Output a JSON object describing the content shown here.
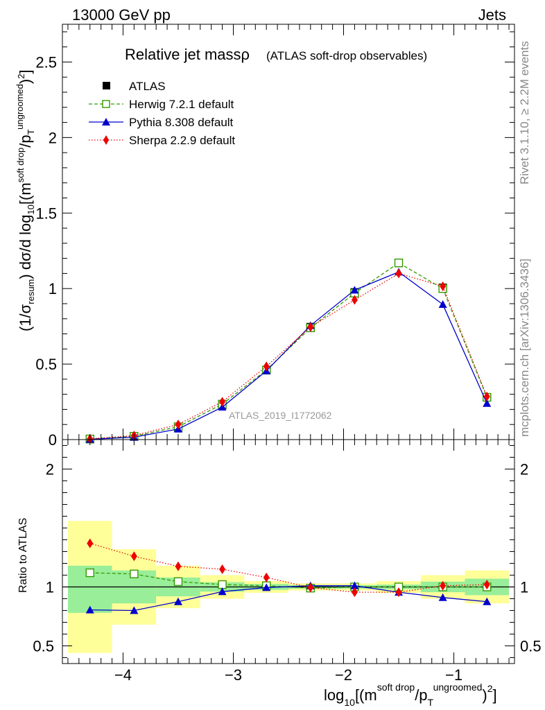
{
  "header": {
    "energy": "13000 GeV pp",
    "category": "Jets",
    "side_version": "Rivet 3.1.10, ≥ 2.2M events",
    "side_source": "mcplots.cern.ch [arXiv:1306.3436]"
  },
  "chart_data": [
    {
      "type": "line",
      "panel": "main",
      "title": "Relative jet massρ",
      "subtitle": "(ATLAS soft-drop observables)",
      "analysis_label": "ATLAS_2019_I1772062",
      "ylabel": "(1/σresum) dσ/d log10[(m^{soft drop}/p_T^{ungroomed})^2]",
      "ylim": [
        0,
        2.75
      ],
      "xlim": [
        -4.55,
        -0.45
      ],
      "yticks": [
        "0",
        "0.5",
        "1",
        "1.5",
        "2",
        "2.5"
      ],
      "legend_position": "top-left",
      "x": [
        -4.3,
        -3.9,
        -3.5,
        -3.1,
        -2.7,
        -2.3,
        -1.9,
        -1.5,
        -1.1,
        -0.7
      ],
      "series": [
        {
          "name": "ATLAS",
          "color": "#000000",
          "marker": "filled-square",
          "line": "none",
          "values": [
            0.003,
            0.02,
            0.08,
            0.23,
            0.46,
            0.745,
            0.975,
            1.17,
            1.005,
            0.28
          ]
        },
        {
          "name": "Herwig 7.2.1 default",
          "color": "#339900",
          "marker": "open-square",
          "line": "dashed",
          "values": [
            0.004,
            0.022,
            0.085,
            0.235,
            0.46,
            0.74,
            0.97,
            1.17,
            1.0,
            0.28
          ]
        },
        {
          "name": "Pythia 8.308 default",
          "color": "#0000cc",
          "marker": "triangle",
          "line": "solid",
          "values": [
            0.002,
            0.016,
            0.07,
            0.215,
            0.455,
            0.755,
            0.99,
            1.11,
            0.895,
            0.24
          ]
        },
        {
          "name": "Sherpa 2.2.9 default",
          "color": "#ee0000",
          "marker": "diamond",
          "line": "dotted",
          "values": [
            0.005,
            0.027,
            0.1,
            0.25,
            0.485,
            0.745,
            0.925,
            1.1,
            1.015,
            0.285
          ]
        }
      ]
    },
    {
      "type": "line",
      "panel": "ratio",
      "ylabel": "Ratio to ATLAS",
      "xlabel": "log10[(m^{soft drop}/p_T^{ungroomed})^2]",
      "ylim": [
        0.35,
        2.25
      ],
      "xlim": [
        -4.55,
        -0.45
      ],
      "yticks": [
        "0.5",
        "1",
        "2"
      ],
      "xticks": [
        "−4",
        "−3",
        "−2",
        "−1"
      ],
      "reference_line": 1,
      "band_edges": [
        -4.5,
        -4.1,
        -3.7,
        -3.3,
        -2.9,
        -2.5,
        -2.1,
        -1.7,
        -1.3,
        -0.9,
        -0.5
      ],
      "band_inner": [
        [
          0.78,
          1.18
        ],
        [
          0.86,
          1.14
        ],
        [
          0.92,
          1.08
        ],
        [
          0.96,
          1.04
        ],
        [
          0.975,
          1.025
        ],
        [
          0.985,
          1.015
        ],
        [
          0.985,
          1.015
        ],
        [
          0.98,
          1.02
        ],
        [
          0.955,
          1.045
        ],
        [
          0.93,
          1.07
        ]
      ],
      "band_outer": [
        [
          0.44,
          1.56
        ],
        [
          0.68,
          1.32
        ],
        [
          0.82,
          1.18
        ],
        [
          0.9,
          1.1
        ],
        [
          0.95,
          1.05
        ],
        [
          0.97,
          1.03
        ],
        [
          0.97,
          1.03
        ],
        [
          0.95,
          1.05
        ],
        [
          0.9,
          1.1
        ],
        [
          0.86,
          1.14
        ]
      ],
      "band_colors": {
        "inner": "#99ee99",
        "outer": "#ffff99"
      },
      "x": [
        -4.3,
        -3.9,
        -3.5,
        -3.1,
        -2.7,
        -2.3,
        -1.9,
        -1.5,
        -1.1,
        -0.7
      ],
      "series": [
        {
          "name": "Herwig 7.2.1 default",
          "color": "#339900",
          "marker": "open-square",
          "line": "dashed",
          "values": [
            1.12,
            1.11,
            1.045,
            1.02,
            1.01,
            0.99,
            1.0,
            1.0,
            1.0,
            1.0
          ]
        },
        {
          "name": "Pythia 8.308 default",
          "color": "#0000cc",
          "marker": "triangle",
          "line": "solid",
          "values": [
            0.805,
            0.8,
            0.875,
            0.96,
            0.995,
            1.01,
            1.01,
            0.955,
            0.91,
            0.875
          ]
        },
        {
          "name": "Sherpa 2.2.9 default",
          "color": "#ee0000",
          "marker": "diamond",
          "line": "dotted",
          "values": [
            1.37,
            1.26,
            1.175,
            1.15,
            1.08,
            0.995,
            0.955,
            0.955,
            1.01,
            1.02
          ]
        }
      ]
    }
  ]
}
